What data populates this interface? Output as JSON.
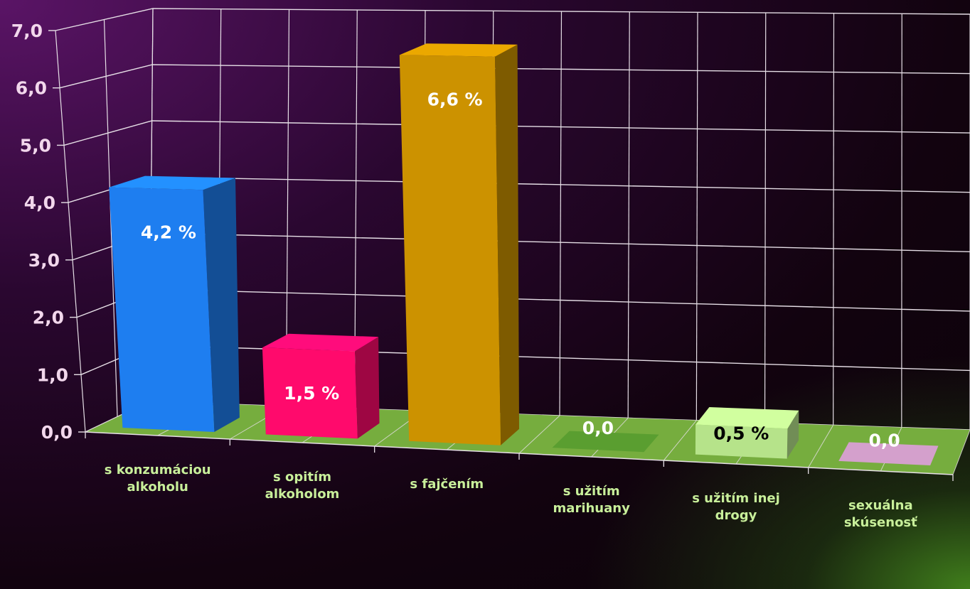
{
  "chart_data": {
    "type": "bar",
    "categories": [
      [
        "s konzumáciou",
        "alkoholu"
      ],
      [
        "s opitím",
        "alkoholom"
      ],
      [
        "s fajčením"
      ],
      [
        "s užitím",
        "marihuany"
      ],
      [
        "s užitím inej",
        "drogy"
      ],
      [
        "sexuálna",
        "skúsenosť"
      ]
    ],
    "values": [
      4.2,
      1.5,
      6.6,
      0.0,
      0.5,
      0.0
    ],
    "data_labels": [
      "4,2 %",
      "1,5 %",
      "6,6 %",
      "0,0",
      "0,5 %",
      "0,0"
    ],
    "data_label_colors": [
      "#ffffff",
      "#ffffff",
      "#ffffff",
      "#ffffff",
      "#000000",
      "#ffffff"
    ],
    "bar_colors": [
      "#1e7ef0",
      "#ff0a6c",
      "#cc9200",
      "#5a9e30",
      "#b6e38a",
      "#d4a0cc"
    ],
    "ytick_labels": [
      "0,0",
      "1,0",
      "2,0",
      "3,0",
      "4,0",
      "5,0",
      "6,0",
      "7,0"
    ],
    "ylim": [
      0,
      7
    ],
    "grid": true,
    "floor_color": "#76ad3e",
    "gridline_color": "#e6dfe6",
    "title": "",
    "xlabel": "",
    "ylabel": ""
  }
}
